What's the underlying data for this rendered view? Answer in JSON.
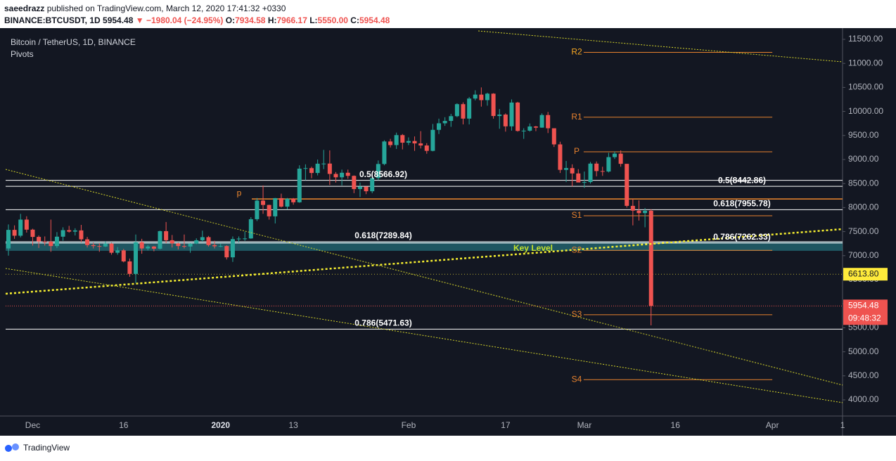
{
  "header": {
    "author": "saeedrazz",
    "published": "published on TradingView.com, March 12, 2020 17:41:32 +0330",
    "symbol": "BINANCE:BTCUSDT, 1D",
    "last": "5954.48",
    "change": "▼ −1980.04 (−24.95%)",
    "ohlc": [
      [
        "O:",
        "7934.58"
      ],
      [
        "H:",
        "7966.17"
      ],
      [
        "L:",
        "5550.00"
      ],
      [
        "C:",
        "5954.48"
      ]
    ]
  },
  "chart_data": {
    "type": "candlestick",
    "title": "Bitcoin / TetherUS, 1D, BINANCE",
    "subtitle": "Pivots",
    "up_color": "#26a69a",
    "down_color": "#ef5350",
    "ylim": [
      3664,
      11675
    ],
    "yticks": [
      {
        "value": 4000,
        "label": "4000.00"
      },
      {
        "value": 4500,
        "label": "4500.00"
      },
      {
        "value": 5000,
        "label": "5000.00"
      },
      {
        "value": 5500,
        "label": "5500.00"
      },
      {
        "value": 6000,
        "label": "6000.00"
      },
      {
        "value": 6500,
        "label": "6500.00"
      },
      {
        "value": 7000,
        "label": "7000.00"
      },
      {
        "value": 7500,
        "label": "7500.00"
      },
      {
        "value": 8000,
        "label": "8000.00"
      },
      {
        "value": 8500,
        "label": "8500.00"
      },
      {
        "value": 9000,
        "label": "9000.00"
      },
      {
        "value": 9500,
        "label": "9500.00"
      },
      {
        "value": 10000,
        "label": "10000.00"
      },
      {
        "value": 10500,
        "label": "10500.00"
      },
      {
        "value": 11000,
        "label": "11000.00"
      },
      {
        "value": 11500,
        "label": "11500.00"
      }
    ],
    "xtick_labels": [
      "Dec",
      "16",
      "2020",
      "13",
      "Feb",
      "17",
      "Mar",
      "16",
      "Apr",
      "1"
    ],
    "candles": [
      [
        7150,
        7650,
        7000,
        7536
      ],
      [
        7536,
        7630,
        7350,
        7415
      ],
      [
        7415,
        7870,
        7380,
        7750
      ],
      [
        7750,
        7820,
        7480,
        7541
      ],
      [
        7541,
        7560,
        7210,
        7390
      ],
      [
        7390,
        7420,
        7160,
        7295
      ],
      [
        7295,
        7400,
        7210,
        7292
      ],
      [
        7292,
        7750,
        7080,
        7200
      ],
      [
        7200,
        7490,
        7160,
        7395
      ],
      [
        7395,
        7590,
        7310,
        7530
      ],
      [
        7530,
        7620,
        7480,
        7500
      ],
      [
        7500,
        7570,
        7420,
        7525
      ],
      [
        7525,
        7640,
        7280,
        7340
      ],
      [
        7340,
        7390,
        7170,
        7220
      ],
      [
        7220,
        7270,
        7150,
        7200
      ],
      [
        7200,
        7260,
        7080,
        7190
      ],
      [
        7190,
        7300,
        7180,
        7250
      ],
      [
        7250,
        7270,
        7020,
        7060
      ],
      [
        7060,
        7180,
        7020,
        7110
      ],
      [
        7110,
        7140,
        6860,
        6880
      ],
      [
        6880,
        6940,
        6560,
        6620
      ],
      [
        6620,
        7440,
        6430,
        7280
      ],
      [
        7280,
        7350,
        7040,
        7150
      ],
      [
        7150,
        7220,
        7110,
        7190
      ],
      [
        7190,
        7200,
        7090,
        7145
      ],
      [
        7145,
        7520,
        7130,
        7510
      ],
      [
        7510,
        7700,
        7260,
        7320
      ],
      [
        7320,
        7430,
        7170,
        7255
      ],
      [
        7255,
        7270,
        7130,
        7200
      ],
      [
        7200,
        7440,
        7150,
        7190
      ],
      [
        7190,
        7260,
        7060,
        7250
      ],
      [
        7250,
        7360,
        7240,
        7320
      ],
      [
        7320,
        7520,
        7290,
        7385
      ],
      [
        7385,
        7410,
        7190,
        7220
      ],
      [
        7220,
        7310,
        7150,
        7195
      ],
      [
        7195,
        7250,
        7175,
        7200
      ],
      [
        7200,
        7215,
        6920,
        6965
      ],
      [
        6965,
        7400,
        6870,
        7345
      ],
      [
        7345,
        7400,
        7280,
        7355
      ],
      [
        7355,
        7500,
        7310,
        7358
      ],
      [
        7358,
        7800,
        7350,
        7758
      ],
      [
        7758,
        8200,
        7720,
        8145
      ],
      [
        8145,
        8460,
        7870,
        8055
      ],
      [
        8055,
        8060,
        7750,
        7818
      ],
      [
        7818,
        8200,
        7670,
        8197
      ],
      [
        8197,
        8290,
        8000,
        8020
      ],
      [
        8020,
        8200,
        7960,
        8185
      ],
      [
        8185,
        8200,
        8060,
        8110
      ],
      [
        8110,
        8880,
        8100,
        8810
      ],
      [
        8810,
        8900,
        8570,
        8821
      ],
      [
        8821,
        8850,
        8610,
        8720
      ],
      [
        8720,
        9000,
        8670,
        8913
      ],
      [
        8913,
        9200,
        8800,
        8916
      ],
      [
        8916,
        9190,
        8470,
        8700
      ],
      [
        8700,
        8740,
        8520,
        8630
      ],
      [
        8630,
        8790,
        8460,
        8725
      ],
      [
        8725,
        8790,
        8600,
        8660
      ],
      [
        8660,
        8670,
        8300,
        8385
      ],
      [
        8385,
        8520,
        8220,
        8435
      ],
      [
        8435,
        8440,
        8280,
        8340
      ],
      [
        8340,
        8620,
        8300,
        8615
      ],
      [
        8615,
        8980,
        8570,
        8907
      ],
      [
        8907,
        9400,
        8880,
        9375
      ],
      [
        9375,
        9430,
        9250,
        9300
      ],
      [
        9300,
        9560,
        9220,
        9508
      ],
      [
        9508,
        9530,
        9210,
        9350
      ],
      [
        9350,
        9460,
        9300,
        9385
      ],
      [
        9385,
        9480,
        9180,
        9335
      ],
      [
        9335,
        9590,
        9230,
        9292
      ],
      [
        9292,
        9340,
        9120,
        9180
      ],
      [
        9180,
        9740,
        9170,
        9617
      ],
      [
        9617,
        9850,
        9530,
        9754
      ],
      [
        9754,
        9880,
        9700,
        9803
      ],
      [
        9803,
        9950,
        9680,
        9902
      ],
      [
        9902,
        10170,
        9880,
        10152
      ],
      [
        10152,
        10190,
        9730,
        9851
      ],
      [
        9851,
        10300,
        9730,
        10268
      ],
      [
        10268,
        10440,
        10230,
        10350
      ],
      [
        10350,
        10500,
        10100,
        10235
      ],
      [
        10235,
        10390,
        10120,
        10370
      ],
      [
        10370,
        10380,
        9850,
        9905
      ],
      [
        9905,
        10050,
        9640,
        9935
      ],
      [
        9935,
        9960,
        9580,
        9690
      ],
      [
        9690,
        10250,
        9600,
        10185
      ],
      [
        10185,
        10200,
        9580,
        9595
      ],
      [
        9595,
        9650,
        9430,
        9600
      ],
      [
        9600,
        9750,
        9580,
        9687
      ],
      [
        9687,
        9700,
        9590,
        9663
      ],
      [
        9663,
        9960,
        9660,
        9925
      ],
      [
        9925,
        9990,
        9550,
        9650
      ],
      [
        9650,
        9650,
        9260,
        9315
      ],
      [
        9315,
        9370,
        8720,
        8785
      ],
      [
        8785,
        8970,
        8530,
        8822
      ],
      [
        8822,
        8900,
        8440,
        8710
      ],
      [
        8710,
        8800,
        8530,
        8523
      ],
      [
        8523,
        8750,
        8410,
        8531
      ],
      [
        8531,
        8950,
        8500,
        8915
      ],
      [
        8915,
        8960,
        8650,
        8760
      ],
      [
        8760,
        8850,
        8660,
        8750
      ],
      [
        8750,
        9140,
        8730,
        9050
      ],
      [
        9050,
        9170,
        9010,
        9122
      ],
      [
        9122,
        9190,
        8850,
        8910
      ],
      [
        8910,
        8910,
        8000,
        8036
      ],
      [
        8036,
        8180,
        7630,
        7937
      ],
      [
        7937,
        8150,
        7730,
        7885
      ],
      [
        7885,
        7990,
        7590,
        7934.58
      ],
      [
        7934.58,
        7966.17,
        5550,
        5954.48
      ]
    ],
    "fib_levels": [
      {
        "label": "0.5(8566.92)",
        "value": 8566.92,
        "label_side": "center"
      },
      {
        "label": "0.5(8442.86)",
        "value": 8442.86,
        "label_side": "right"
      },
      {
        "label": "0.618(7955.78)",
        "value": 7955.78,
        "label_side": "right"
      },
      {
        "label": "0.618(7289.84)",
        "value": 7289.84,
        "label_side": "center"
      },
      {
        "label": "0.786(7262.33)",
        "value": 7262.33,
        "label_side": "right"
      },
      {
        "label": "0.786(5471.63)",
        "value": 5471.63,
        "label_side": "center"
      }
    ],
    "fib_color": "#ffffff",
    "key_level": {
      "label": "Key Level",
      "range": [
        7100,
        7290
      ],
      "color": "#2a8a96",
      "text_color": "#c6e32c"
    },
    "p_line": {
      "label": "p",
      "value": 8180,
      "color": "#f0892e"
    },
    "pivots": [
      {
        "label": "R2",
        "value": 11230
      },
      {
        "label": "R1",
        "value": 9880
      },
      {
        "label": "P",
        "value": 9160
      },
      {
        "label": "S1",
        "value": 7830
      },
      {
        "label": "S2",
        "value": 7110
      },
      {
        "label": "S3",
        "value": 5770
      },
      {
        "label": "S4",
        "value": 4420
      }
    ],
    "pivot_color": "#e8822e",
    "marker_line": {
      "value": 6613.8,
      "label": "6613.80",
      "color": "#ffeb3b"
    },
    "current_price": {
      "value": 5954.48,
      "label": "5954.48",
      "countdown": "09:48:32",
      "color": "#ef5350"
    }
  },
  "footer": {
    "brand": "TradingView"
  }
}
